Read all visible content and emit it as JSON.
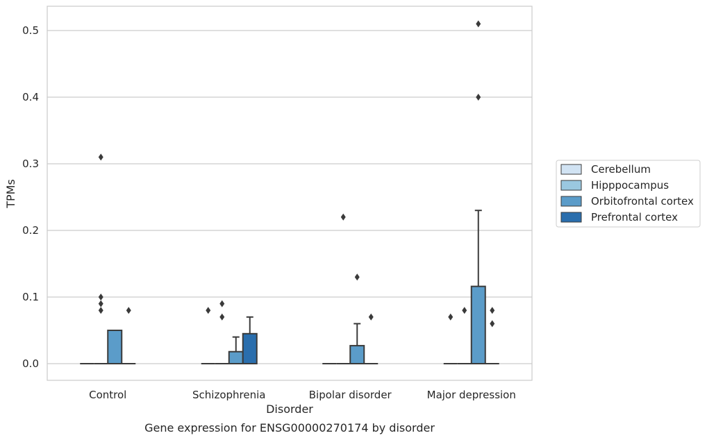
{
  "chart_data": {
    "type": "box",
    "xlabel": "Disorder",
    "ylabel": "TPMs",
    "caption": "Gene expression for ENSG00000270174 by disorder",
    "ylim": [
      -0.025,
      0.5375
    ],
    "yticks": [
      "0.0",
      "0.1",
      "0.2",
      "0.3",
      "0.4",
      "0.5"
    ],
    "grid": "horizontal",
    "legend_position": "right",
    "categories": [
      "Control",
      "Schizophrenia",
      "Bipolar disorder",
      "Major depression"
    ],
    "series": [
      {
        "name": "Cerebellum",
        "color": "#d1e3f3",
        "boxes": [
          {
            "q1": 0,
            "median": 0,
            "q3": 0,
            "whisker_low": 0,
            "whisker_high": 0,
            "outliers": []
          },
          {
            "q1": 0,
            "median": 0,
            "q3": 0,
            "whisker_low": 0,
            "whisker_high": 0,
            "outliers": []
          },
          {
            "q1": 0,
            "median": 0,
            "q3": 0,
            "whisker_low": 0,
            "whisker_high": 0,
            "outliers": []
          },
          {
            "q1": 0,
            "median": 0,
            "q3": 0,
            "whisker_low": 0,
            "whisker_high": 0,
            "outliers": []
          }
        ]
      },
      {
        "name": "Hipppocampus",
        "color": "#9ac8e0",
        "boxes": [
          {
            "q1": 0,
            "median": 0,
            "q3": 0,
            "whisker_low": 0,
            "whisker_high": 0,
            "outliers": [
              0.08,
              0.09,
              0.1,
              0.31
            ]
          },
          {
            "q1": 0,
            "median": 0,
            "q3": 0,
            "whisker_low": 0,
            "whisker_high": 0,
            "outliers": [
              0.07,
              0.09
            ]
          },
          {
            "q1": 0,
            "median": 0,
            "q3": 0,
            "whisker_low": 0,
            "whisker_high": 0,
            "outliers": [
              0.22
            ]
          },
          {
            "q1": 0,
            "median": 0,
            "q3": 0,
            "whisker_low": 0,
            "whisker_high": 0,
            "outliers": [
              0.08
            ]
          }
        ]
      },
      {
        "name": "Orbitofrontal cortex",
        "color": "#5b9cc9",
        "boxes": [
          {
            "q1": 0,
            "median": 0,
            "q3": 0.05,
            "whisker_low": 0,
            "whisker_high": 0.05,
            "outliers": []
          },
          {
            "q1": 0,
            "median": 0,
            "q3": 0.018,
            "whisker_low": 0,
            "whisker_high": 0.04,
            "outliers": []
          },
          {
            "q1": 0,
            "median": 0,
            "q3": 0.027,
            "whisker_low": 0,
            "whisker_high": 0.06,
            "outliers": [
              0.13
            ]
          },
          {
            "q1": 0,
            "median": 0,
            "q3": 0.116,
            "whisker_low": 0,
            "whisker_high": 0.23,
            "outliers": [
              0.4,
              0.51
            ]
          }
        ]
      },
      {
        "name": "Prefrontal cortex",
        "color": "#2a6ead",
        "boxes": [
          {
            "q1": 0,
            "median": 0,
            "q3": 0,
            "whisker_low": 0,
            "whisker_high": 0,
            "outliers": [
              0.08
            ]
          },
          {
            "q1": 0,
            "median": 0,
            "q3": 0.045,
            "whisker_low": 0,
            "whisker_high": 0.07,
            "outliers": []
          },
          {
            "q1": 0,
            "median": 0,
            "q3": 0,
            "whisker_low": 0,
            "whisker_high": 0,
            "outliers": [
              0.07
            ]
          },
          {
            "q1": 0,
            "median": 0,
            "q3": 0,
            "whisker_low": 0,
            "whisker_high": 0,
            "outliers": [
              0.06,
              0.08
            ]
          }
        ]
      }
    ],
    "extra_outliers": [
      {
        "category": "Schizophrenia",
        "series": "Cerebellum",
        "values": [
          0.08
        ]
      },
      {
        "category": "Major depression",
        "series": "Cerebellum",
        "values": [
          0.07
        ]
      }
    ]
  }
}
